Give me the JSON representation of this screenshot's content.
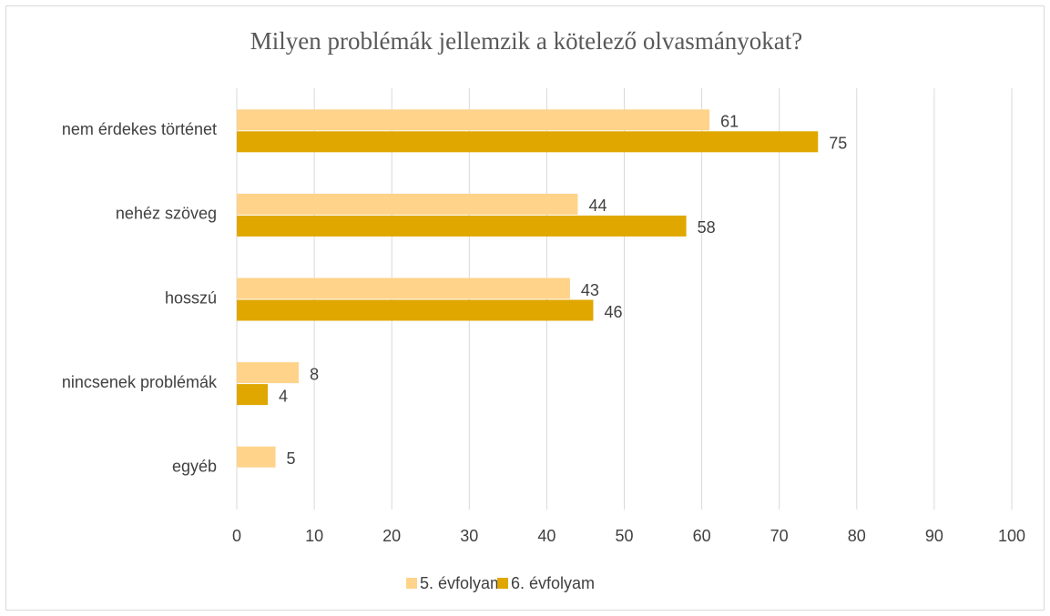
{
  "chart_data": {
    "type": "hbar",
    "title": "Milyen problémák jellemzik a kötelező olvasmányokat?",
    "categories": [
      "nem érdekes történet",
      "nehéz szöveg",
      "hosszú",
      "nincsenek problémák",
      "egyéb"
    ],
    "series": [
      {
        "name": "5. évfolyam",
        "color": "#ffd38a",
        "values": [
          61,
          44,
          43,
          8,
          5
        ]
      },
      {
        "name": "6. évfolyam",
        "color": "#dfa700",
        "values": [
          75,
          58,
          46,
          4,
          null
        ]
      }
    ],
    "xlim": [
      0,
      100
    ],
    "xticks": [
      0,
      10,
      20,
      30,
      40,
      50,
      60,
      70,
      80,
      90,
      100
    ],
    "grid": true,
    "legend": "bottom"
  }
}
